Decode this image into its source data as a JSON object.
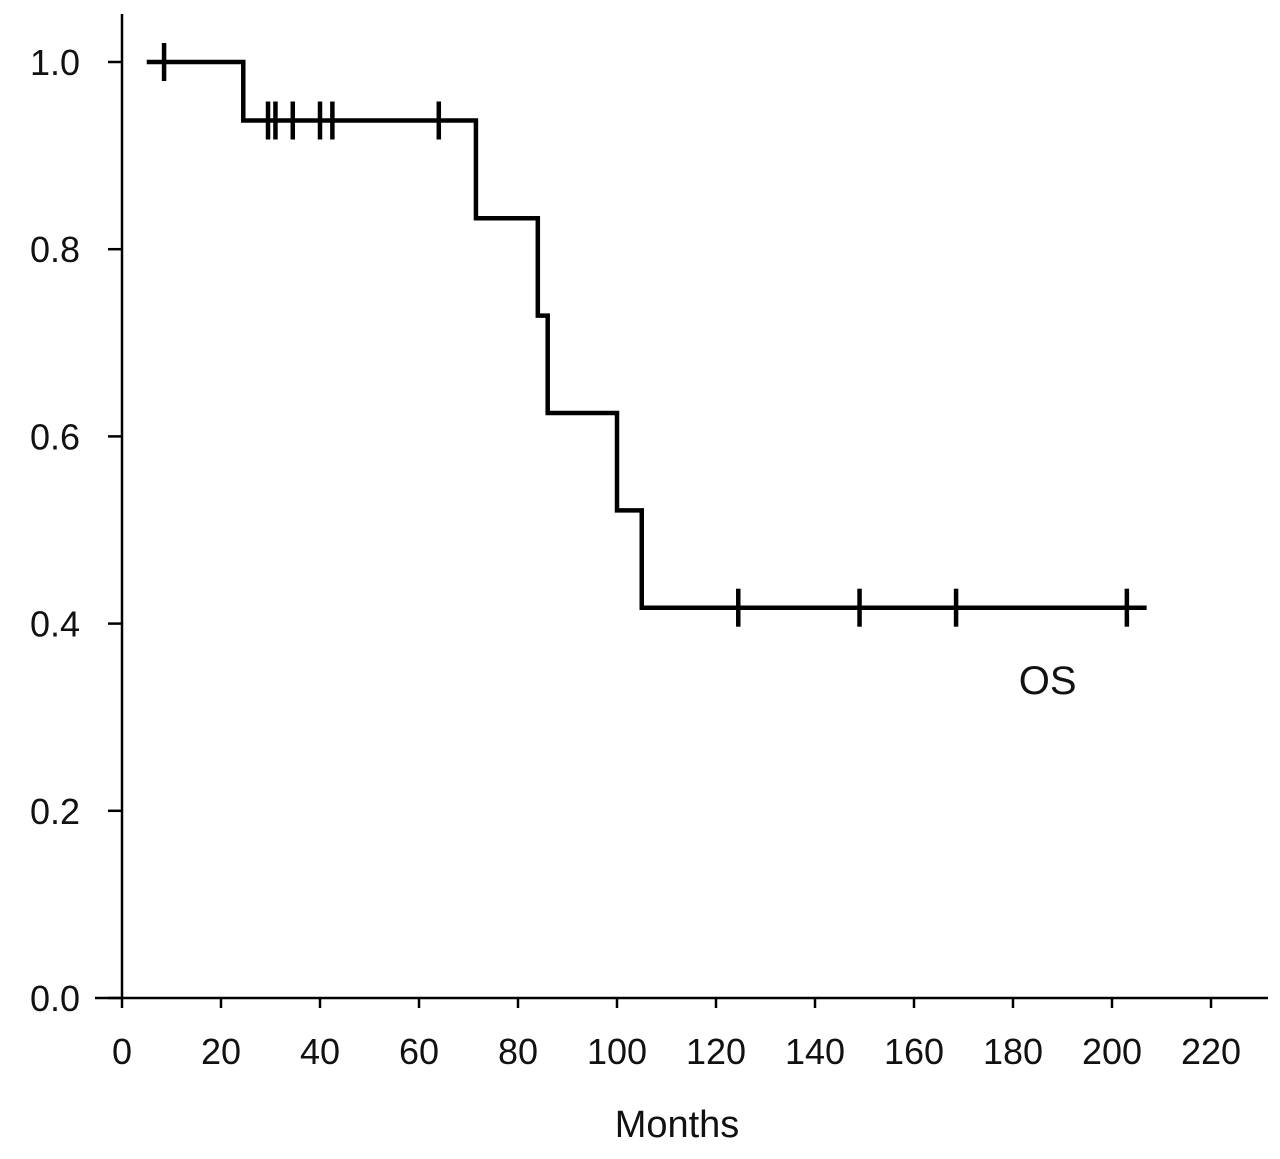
{
  "chart_data": {
    "type": "line",
    "subtype": "kaplan-meier-step",
    "xlabel": "Months",
    "ylabel": "",
    "xlim": [
      0,
      220
    ],
    "ylim": [
      0,
      1.0
    ],
    "xticks": [
      "0",
      "20",
      "40",
      "60",
      "80",
      "100",
      "120",
      "140",
      "160",
      "180",
      "200",
      "220"
    ],
    "yticks": [
      "0.0",
      "0.2",
      "0.4",
      "0.6",
      "0.8",
      "1.0"
    ],
    "grid": false,
    "series": [
      {
        "name": "OS",
        "color": "#000000",
        "steps": [
          {
            "x": 5,
            "y": 1.0
          },
          {
            "x": 24.5,
            "y": 0.9375
          },
          {
            "x": 71.5,
            "y": 0.833
          },
          {
            "x": 84,
            "y": 0.729
          },
          {
            "x": 86,
            "y": 0.625
          },
          {
            "x": 100,
            "y": 0.521
          },
          {
            "x": 105,
            "y": 0.417
          }
        ],
        "end_x": 207,
        "censored": [
          {
            "x": 8.5,
            "y": 1.0
          },
          {
            "x": 29.5,
            "y": 0.9375
          },
          {
            "x": 31,
            "y": 0.9375
          },
          {
            "x": 34.5,
            "y": 0.9375
          },
          {
            "x": 40,
            "y": 0.9375
          },
          {
            "x": 42.5,
            "y": 0.9375
          },
          {
            "x": 64,
            "y": 0.9375
          },
          {
            "x": 124.5,
            "y": 0.417
          },
          {
            "x": 149,
            "y": 0.417
          },
          {
            "x": 168.5,
            "y": 0.417
          },
          {
            "x": 203,
            "y": 0.417
          }
        ]
      }
    ],
    "annotations": [
      {
        "text": "OS",
        "x": 187,
        "y": 0.34
      }
    ]
  }
}
